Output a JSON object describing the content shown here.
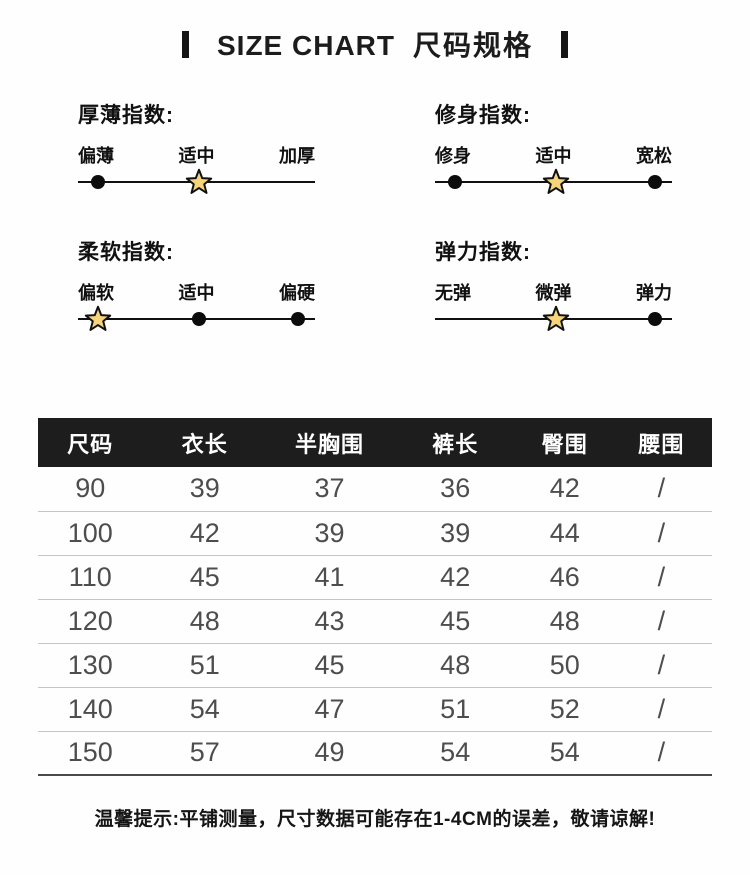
{
  "title": {
    "en": "SIZE CHART",
    "zh": "尺码规格"
  },
  "indices": [
    {
      "name": "厚薄指数:",
      "options": [
        {
          "label": "偏薄",
          "marker": "dot"
        },
        {
          "label": "适中",
          "marker": "star"
        },
        {
          "label": "加厚",
          "marker": "none"
        }
      ]
    },
    {
      "name": "修身指数:",
      "options": [
        {
          "label": "修身",
          "marker": "dot"
        },
        {
          "label": "适中",
          "marker": "star"
        },
        {
          "label": "宽松",
          "marker": "dot"
        }
      ]
    },
    {
      "name": "柔软指数:",
      "options": [
        {
          "label": "偏软",
          "marker": "star"
        },
        {
          "label": "适中",
          "marker": "dot"
        },
        {
          "label": "偏硬",
          "marker": "dot"
        }
      ]
    },
    {
      "name": "弹力指数:",
      "options": [
        {
          "label": "无弹",
          "marker": "none"
        },
        {
          "label": "微弹",
          "marker": "star"
        },
        {
          "label": "弹力",
          "marker": "dot"
        }
      ]
    }
  ],
  "chart_data": {
    "type": "table",
    "title": "SIZE CHART 尺码规格",
    "columns": [
      "尺码",
      "衣长",
      "半胸围",
      "裤长",
      "臀围",
      "腰围"
    ],
    "rows": [
      [
        "90",
        "39",
        "37",
        "36",
        "42",
        "/"
      ],
      [
        "100",
        "42",
        "39",
        "39",
        "44",
        "/"
      ],
      [
        "110",
        "45",
        "41",
        "42",
        "46",
        "/"
      ],
      [
        "120",
        "48",
        "43",
        "45",
        "48",
        "/"
      ],
      [
        "130",
        "51",
        "45",
        "48",
        "50",
        "/"
      ],
      [
        "140",
        "54",
        "47",
        "51",
        "52",
        "/"
      ],
      [
        "150",
        "57",
        "49",
        "54",
        "54",
        "/"
      ]
    ]
  },
  "footer_note": "温馨提示:平铺测量，尺寸数据可能存在1-4CM的误差，敬请谅解!",
  "icons": {
    "dot_marker": "black-dot-icon",
    "star_marker": "star-icon"
  },
  "colors": {
    "star_fill": "#F5D47A",
    "header_bg": "#1D1D1D",
    "header_text": "#FFFFFF",
    "body_text": "#4D4D4D",
    "accent_black": "#151515",
    "row_divider": "#C5C5C5"
  }
}
